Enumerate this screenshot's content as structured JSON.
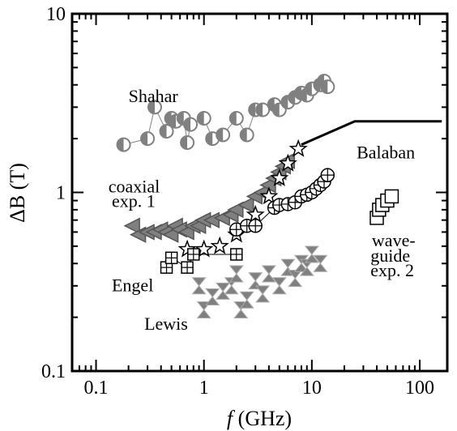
{
  "chart_data": {
    "type": "scatter",
    "xscale": "log",
    "yscale": "log",
    "xlim": [
      0.06,
      180
    ],
    "ylim": [
      0.1,
      10
    ],
    "xticks": [
      {
        "value": 0.1,
        "label": "0.1"
      },
      {
        "value": 1,
        "label": "1"
      },
      {
        "value": 10,
        "label": "10"
      },
      {
        "value": 100,
        "label": "100"
      }
    ],
    "yticks": [
      {
        "value": 0.1,
        "label": "0.1"
      },
      {
        "value": 1,
        "label": "1"
      },
      {
        "value": 10,
        "label": "10"
      }
    ],
    "xlabel": {
      "italic": "f",
      "rest": " (GHz)"
    },
    "ylabel": {
      "main": "ΔB",
      "rest": " (T)"
    },
    "annotations": [
      {
        "text": "Shahar",
        "x": 0.2,
        "y": 3.2
      },
      {
        "text": "Balaban",
        "x": 26,
        "y": 1.55
      },
      {
        "text": "coaxial",
        "x": 0.13,
        "y": 1.0
      },
      {
        "text": "exp. 1",
        "x": 0.14,
        "y": 0.83
      },
      {
        "text": "Engel",
        "x": 0.14,
        "y": 0.28
      },
      {
        "text": "Lewis",
        "x": 0.28,
        "y": 0.17
      },
      {
        "text": "wave-",
        "x": 36,
        "y": 0.5
      },
      {
        "text": "guide",
        "x": 35,
        "y": 0.41
      },
      {
        "text": "exp. 2",
        "x": 35,
        "y": 0.34
      }
    ],
    "series": [
      {
        "name": "Balaban",
        "style": "line",
        "color": "#000000",
        "points": [
          [
            8,
            1.85
          ],
          [
            25,
            2.5
          ],
          [
            160,
            2.5
          ]
        ]
      },
      {
        "name": "Shahar",
        "style": "markers",
        "color": "#808080",
        "points": [
          [
            0.18,
            1.85
          ],
          [
            0.3,
            2.0
          ],
          [
            0.35,
            3.0
          ],
          [
            0.45,
            2.2
          ],
          [
            0.5,
            2.6
          ],
          [
            0.55,
            2.5
          ],
          [
            0.65,
            2.6
          ],
          [
            0.7,
            1.9
          ],
          [
            0.75,
            2.4
          ],
          [
            1.0,
            2.6
          ],
          [
            1.2,
            2.0
          ],
          [
            1.5,
            2.1
          ],
          [
            2.0,
            2.6
          ],
          [
            2.5,
            2.1
          ],
          [
            3.0,
            2.9
          ],
          [
            3.5,
            2.9
          ],
          [
            4.5,
            3.1
          ],
          [
            5,
            2.9
          ],
          [
            6,
            3.2
          ],
          [
            7,
            3.4
          ],
          [
            8,
            3.6
          ],
          [
            9,
            3.5
          ],
          [
            10,
            3.8
          ],
          [
            12,
            4.0
          ],
          [
            13,
            4.2
          ],
          [
            14,
            3.9
          ]
        ]
      },
      {
        "name": "coaxial exp. 1",
        "style": "markers",
        "color": "#808080",
        "points": [
          [
            0.22,
            0.65
          ],
          [
            0.25,
            0.58
          ],
          [
            0.3,
            0.6
          ],
          [
            0.35,
            0.6
          ],
          [
            0.4,
            0.62
          ],
          [
            0.45,
            0.6
          ],
          [
            0.5,
            0.58
          ],
          [
            0.55,
            0.65
          ],
          [
            0.6,
            0.62
          ],
          [
            0.7,
            0.6
          ],
          [
            0.8,
            0.65
          ],
          [
            0.9,
            0.65
          ],
          [
            1.0,
            0.7
          ],
          [
            1.2,
            0.7
          ],
          [
            1.5,
            0.72
          ],
          [
            1.8,
            0.75
          ],
          [
            2.0,
            0.8
          ],
          [
            2.5,
            0.85
          ],
          [
            3.0,
            0.95
          ],
          [
            3.5,
            1.0
          ],
          [
            4.0,
            1.1
          ],
          [
            4.5,
            1.2
          ],
          [
            5.0,
            1.3
          ],
          [
            5.5,
            1.4
          ],
          [
            6.0,
            1.5
          ]
        ]
      },
      {
        "name": "coaxial stars",
        "style": "markers",
        "color": "#000000",
        "points": [
          [
            0.7,
            0.48
          ],
          [
            1.0,
            0.48
          ],
          [
            1.4,
            0.5
          ],
          [
            2.0,
            0.58
          ],
          [
            3.0,
            0.75
          ],
          [
            4.0,
            0.95
          ],
          [
            5.0,
            1.2
          ],
          [
            6.0,
            1.45
          ],
          [
            7.5,
            1.75
          ]
        ]
      },
      {
        "name": "coaxial open",
        "style": "markers",
        "color": "#000000",
        "points": [
          [
            2.0,
            0.62
          ],
          [
            2.5,
            0.65
          ],
          [
            3.0,
            0.65
          ],
          [
            4.5,
            0.82
          ],
          [
            5.0,
            0.85
          ],
          [
            6.0,
            0.86
          ],
          [
            7.0,
            0.88
          ],
          [
            8.0,
            0.95
          ],
          [
            9.0,
            0.97
          ],
          [
            10.0,
            1.0
          ],
          [
            11.0,
            1.05
          ],
          [
            12.0,
            1.1
          ],
          [
            13.0,
            1.15
          ],
          [
            14.0,
            1.25
          ]
        ]
      },
      {
        "name": "Engel",
        "style": "markers",
        "color": "#000000",
        "points": [
          [
            0.45,
            0.38
          ],
          [
            0.5,
            0.43
          ],
          [
            0.7,
            0.38
          ],
          [
            0.8,
            0.45
          ],
          [
            2.0,
            0.45
          ]
        ]
      },
      {
        "name": "Lewis",
        "style": "markers",
        "color": "#808080",
        "points": [
          [
            0.9,
            0.3
          ],
          [
            1.0,
            0.22
          ],
          [
            1.2,
            0.26
          ],
          [
            1.5,
            0.28
          ],
          [
            1.8,
            0.3
          ],
          [
            2.0,
            0.35
          ],
          [
            2.2,
            0.22
          ],
          [
            2.5,
            0.25
          ],
          [
            3.0,
            0.32
          ],
          [
            3.5,
            0.27
          ],
          [
            4.0,
            0.35
          ],
          [
            5.0,
            0.3
          ],
          [
            6.0,
            0.38
          ],
          [
            7.0,
            0.33
          ],
          [
            8.0,
            0.4
          ],
          [
            9.0,
            0.38
          ],
          [
            10.0,
            0.45
          ],
          [
            12.0,
            0.4
          ]
        ]
      },
      {
        "name": "waveguide exp. 2",
        "style": "markers",
        "color": "#000000",
        "points": [
          [
            40,
            0.72
          ],
          [
            42,
            0.8
          ],
          [
            45,
            0.85
          ],
          [
            50,
            0.9
          ],
          [
            55,
            0.95
          ]
        ]
      }
    ]
  }
}
